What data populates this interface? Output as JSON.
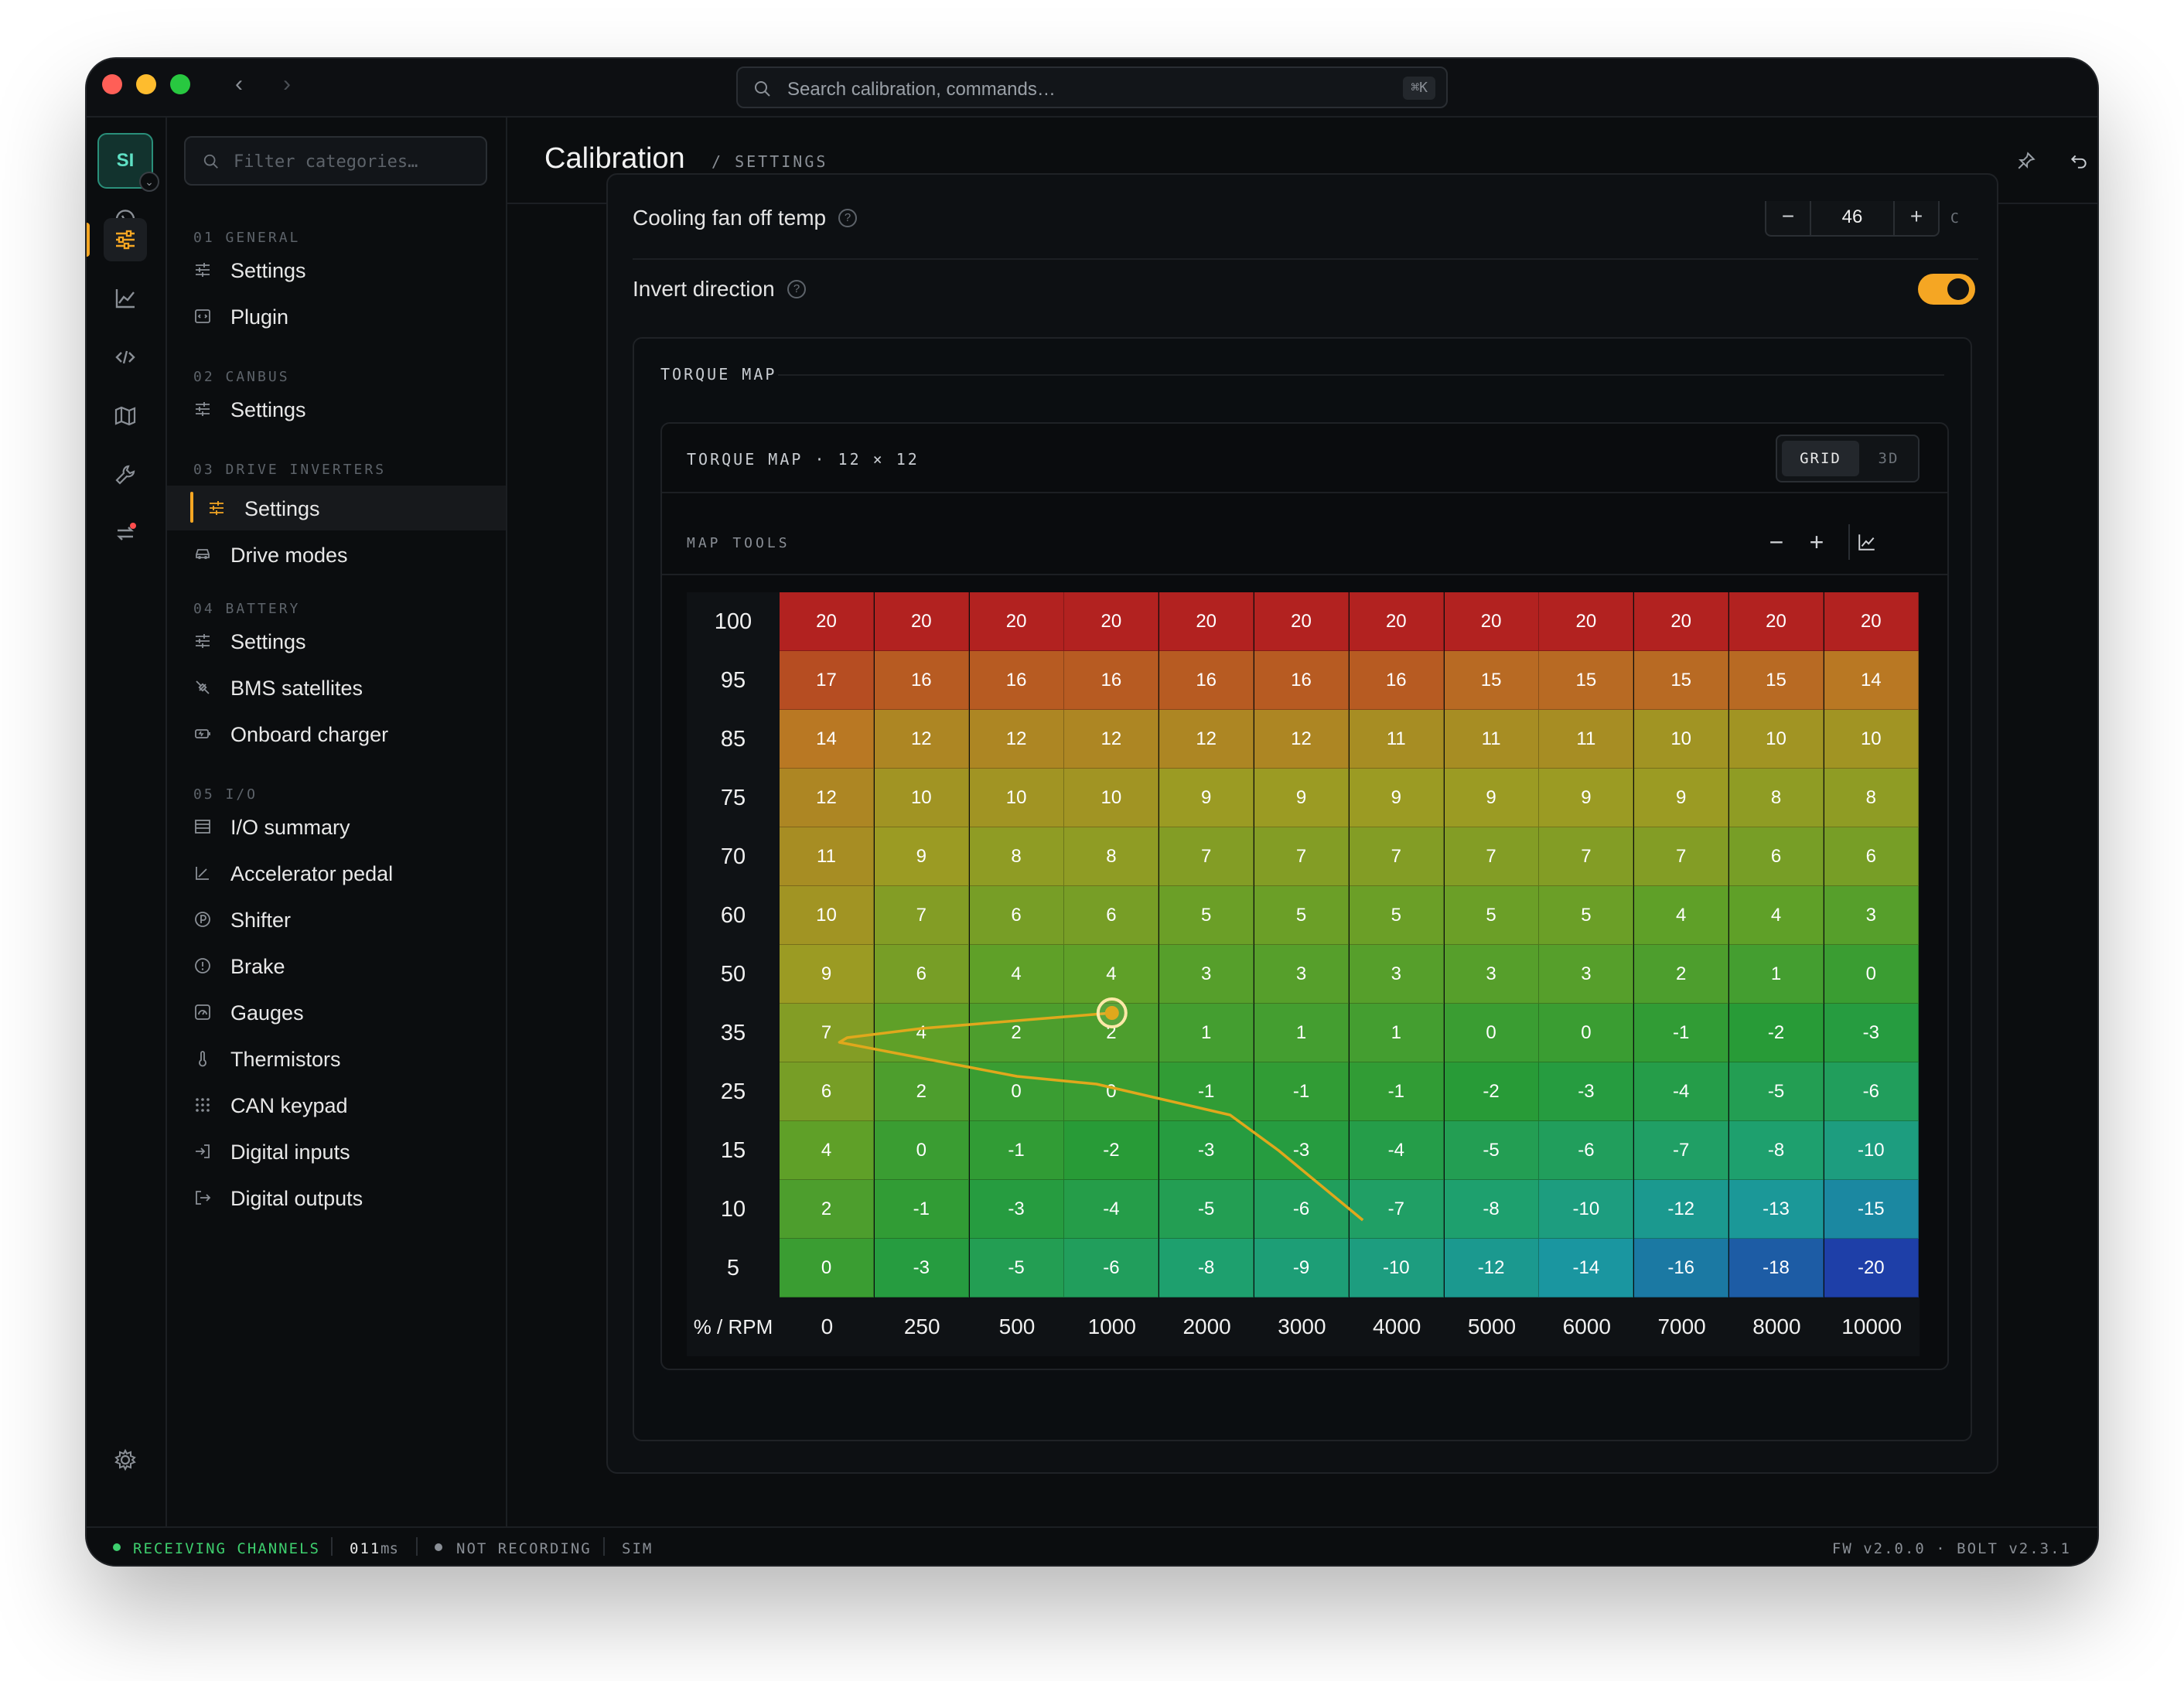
{
  "titlebar": {
    "search_placeholder": "Search calibration, commands…",
    "shortcut": "⌘K"
  },
  "avatar": "SI",
  "sidebar": {
    "filter_placeholder": "Filter categories…",
    "sections": [
      {
        "heading": "01 GENERAL",
        "items": [
          "Settings",
          "Plugin"
        ]
      },
      {
        "heading": "02 CANBUS",
        "items": [
          "Settings"
        ]
      },
      {
        "heading": "03 DRIVE INVERTERS",
        "items": [
          "Settings",
          "Drive modes"
        ]
      },
      {
        "heading": "04 BATTERY",
        "items": [
          "Settings",
          "BMS satellites",
          "Onboard charger"
        ]
      },
      {
        "heading": "05 I/O",
        "items": [
          "I/O summary",
          "Accelerator pedal",
          "Shifter",
          "Brake",
          "Gauges",
          "Thermistors",
          "CAN keypad",
          "Digital inputs",
          "Digital outputs"
        ]
      }
    ]
  },
  "header": {
    "title": "Calibration",
    "breadcrumb": "/ SETTINGS"
  },
  "settings": {
    "fan_off_label": "Cooling fan off temp",
    "fan_off_value": "46",
    "fan_off_unit": "C",
    "invert_label": "Invert direction",
    "invert_on": true
  },
  "torque_panel": {
    "title": "TORQUE MAP",
    "inner_title": "TORQUE MAP · 12 × 12",
    "view_grid": "GRID",
    "view_3d": "3D",
    "tools_title": "MAP TOOLS"
  },
  "chart_data": {
    "type": "heatmap",
    "corner_label": "% / RPM",
    "x": [
      "0",
      "250",
      "500",
      "1000",
      "2000",
      "3000",
      "4000",
      "5000",
      "6000",
      "7000",
      "8000",
      "10000"
    ],
    "y": [
      "100",
      "95",
      "85",
      "75",
      "70",
      "60",
      "50",
      "35",
      "25",
      "15",
      "10",
      "5"
    ],
    "values": [
      [
        20,
        20,
        20,
        20,
        20,
        20,
        20,
        20,
        20,
        20,
        20,
        20
      ],
      [
        17,
        16,
        16,
        16,
        16,
        16,
        16,
        15,
        15,
        15,
        15,
        14
      ],
      [
        14,
        12,
        12,
        12,
        12,
        12,
        11,
        11,
        11,
        10,
        10,
        10
      ],
      [
        12,
        10,
        10,
        10,
        9,
        9,
        9,
        9,
        9,
        9,
        8,
        8
      ],
      [
        11,
        9,
        8,
        8,
        7,
        7,
        7,
        7,
        7,
        7,
        6,
        6
      ],
      [
        10,
        7,
        6,
        6,
        5,
        5,
        5,
        5,
        5,
        4,
        4,
        3
      ],
      [
        9,
        6,
        4,
        4,
        3,
        3,
        3,
        3,
        3,
        2,
        1,
        0
      ],
      [
        7,
        4,
        2,
        2,
        1,
        1,
        1,
        0,
        0,
        -1,
        -2,
        -3
      ],
      [
        6,
        2,
        0,
        0,
        -1,
        -1,
        -1,
        -2,
        -3,
        -4,
        -5,
        -6
      ],
      [
        4,
        0,
        -1,
        -2,
        -3,
        -3,
        -4,
        -5,
        -6,
        -7,
        -8,
        -10
      ],
      [
        2,
        -1,
        -3,
        -4,
        -5,
        -6,
        -7,
        -8,
        -10,
        -12,
        -13,
        -15
      ],
      [
        0,
        -3,
        -5,
        -6,
        -8,
        -9,
        -10,
        -12,
        -14,
        -16,
        -18,
        -20
      ]
    ],
    "color_range": [
      -20,
      20
    ],
    "colors": {
      "max": "#b3221f",
      "mid_high": "#9a9a22",
      "mid": "#2f9a2a",
      "low": "#1aa394",
      "min": "#1e3fa8"
    },
    "operating_point": {
      "rpm_index": 3,
      "load_index": 7
    },
    "trace_color": "#e0a81c"
  },
  "statusbar": {
    "receiving": "RECEIVING CHANNELS",
    "latency_value": "011",
    "latency_unit": "ms",
    "recording": "NOT RECORDING",
    "mode": "SIM",
    "version": "FW v2.0.0 · BOLT v2.3.1"
  },
  "colors": {
    "accent": "#f5a623",
    "live": "#3ecf6e"
  }
}
